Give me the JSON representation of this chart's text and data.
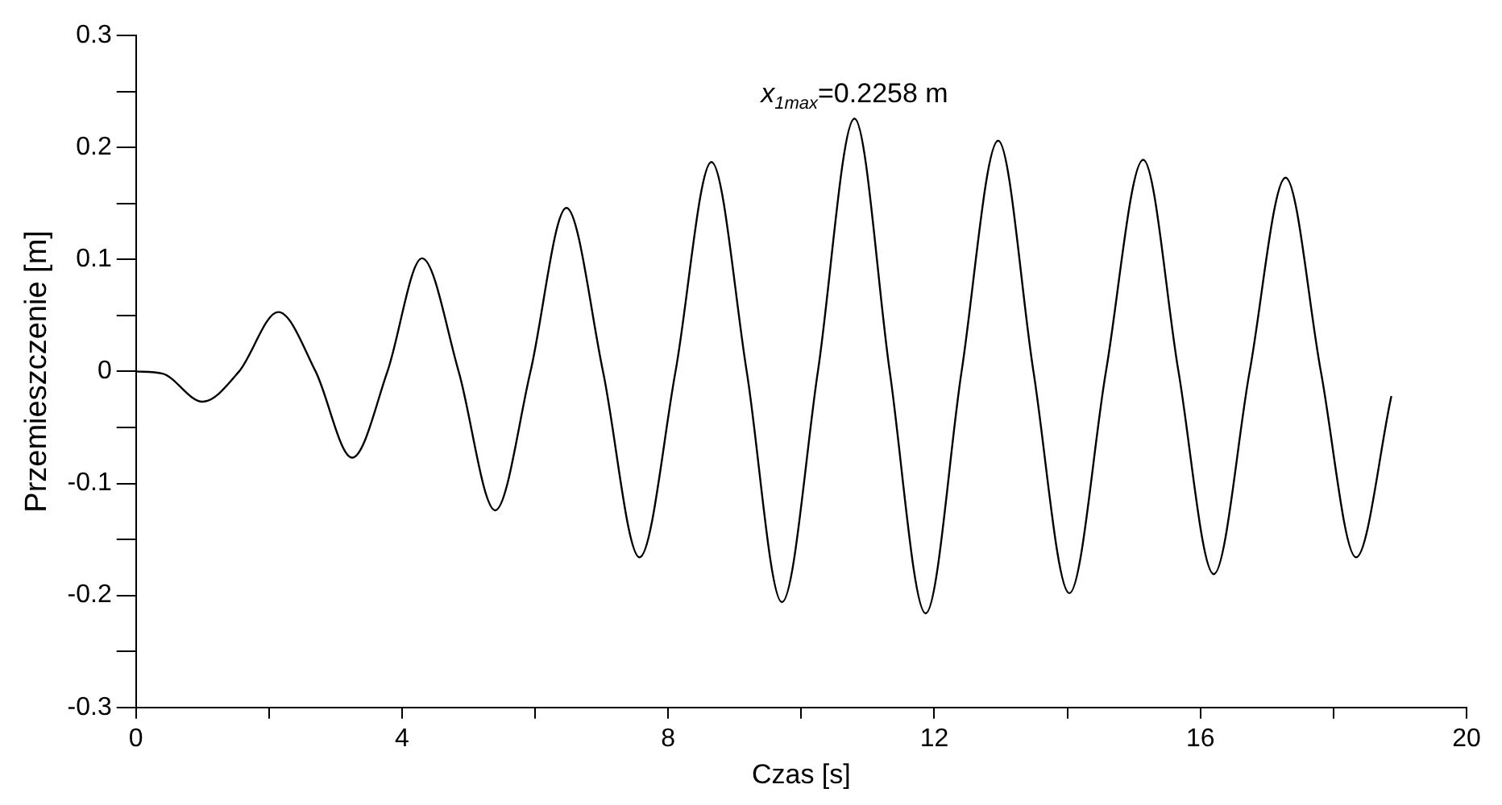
{
  "chart_data": {
    "type": "line",
    "xlabel": "Czas [s]",
    "ylabel": "Przemieszczenie [m]",
    "x": [
      0,
      0.4,
      1.0,
      1.55,
      2.14,
      2.7,
      3.25,
      3.78,
      4.3,
      4.85,
      5.4,
      5.93,
      6.47,
      7.02,
      7.57,
      8.11,
      8.65,
      9.18,
      9.71,
      10.25,
      10.8,
      11.33,
      11.87,
      12.41,
      12.96,
      13.49,
      14.03,
      14.58,
      15.14,
      15.67,
      16.2,
      16.74,
      17.28,
      17.81,
      18.34,
      18.87
    ],
    "series": [
      {
        "color": "#000000",
        "values": [
          0,
          -0.002,
          -0.027,
          0,
          0.053,
          0,
          -0.077,
          0,
          0.101,
          0,
          -0.124,
          0,
          0.146,
          0,
          -0.166,
          0,
          0.187,
          0,
          -0.206,
          0,
          0.2258,
          0,
          -0.216,
          0,
          0.206,
          0,
          -0.198,
          0,
          0.189,
          0,
          -0.181,
          0,
          0.173,
          0,
          -0.166,
          -0.022
        ]
      }
    ],
    "xlim": [
      0,
      20
    ],
    "xticks": [
      0,
      {
        "value": 2,
        "label": null
      },
      4,
      {
        "value": 6,
        "label": null
      },
      8,
      {
        "value": 10,
        "label": null
      },
      12,
      {
        "value": 14,
        "label": null
      },
      16,
      {
        "value": 18,
        "label": null
      },
      20
    ],
    "ylim": [
      -0.3,
      0.3
    ],
    "yticks": [
      -0.3,
      {
        "value": -0.25,
        "label": null
      },
      -0.2,
      {
        "value": -0.15,
        "label": null
      },
      -0.1,
      {
        "value": -0.05,
        "label": null
      },
      0,
      {
        "value": 0.05,
        "label": null
      },
      0.1,
      {
        "value": 0.15,
        "label": null
      },
      0.2,
      {
        "value": 0.25,
        "label": null
      },
      0.3
    ],
    "annotations": [
      {
        "text": "x$_{1max}$=0.2258 m",
        "x": 10.8,
        "y": 0.2258
      }
    ],
    "grid": false,
    "legend": false,
    "marker": "none",
    "line_style": "solid"
  }
}
